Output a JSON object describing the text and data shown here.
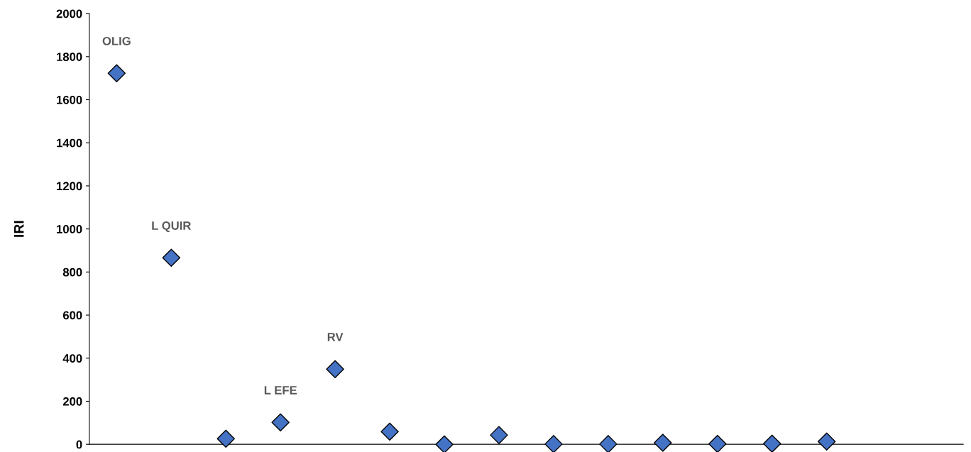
{
  "chart_data": {
    "type": "scatter",
    "ylabel": "IRI",
    "categories": [
      null,
      null,
      null,
      null,
      null,
      null,
      null,
      null,
      null,
      null,
      null,
      null,
      null,
      null,
      null,
      null
    ],
    "series": [
      {
        "color": "#4472c4",
        "values": [
          1723,
          866,
          26,
          102,
          349,
          59,
          0,
          43,
          1,
          1,
          7,
          2,
          3,
          13,
          null,
          null
        ]
      }
    ],
    "ylim": [
      0,
      2000
    ],
    "yticks": [
      0,
      200,
      400,
      600,
      800,
      1000,
      1200,
      1400,
      1600,
      1800,
      2000
    ],
    "tick_labels": "y",
    "grid": false,
    "legend": false,
    "marker": "diamond",
    "annotations": [
      {
        "text": "OLIG",
        "y": 1723
      },
      {
        "text": "L QUIR",
        "y": 866
      },
      {
        "text": "L EFE",
        "y": 102
      },
      {
        "text": "RV",
        "y": 349
      }
    ]
  }
}
